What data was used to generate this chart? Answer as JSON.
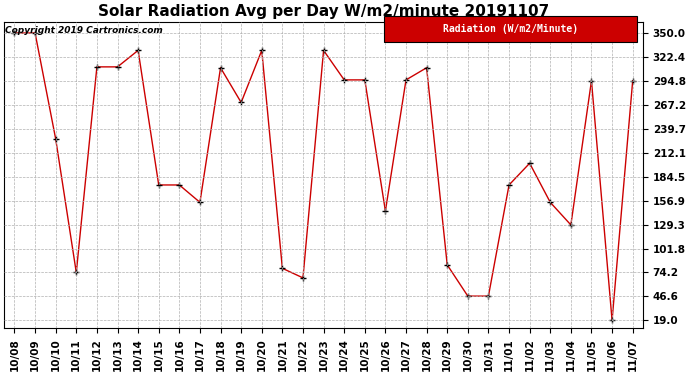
{
  "title": "Solar Radiation Avg per Day W/m2/minute 20191107",
  "copyright": "Copyright 2019 Cartronics.com",
  "legend_label": "Radiation (W/m2/Minute)",
  "dates": [
    "10/08",
    "10/09",
    "10/10",
    "10/11",
    "10/12",
    "10/13",
    "10/14",
    "10/15",
    "10/16",
    "10/17",
    "10/18",
    "10/19",
    "10/20",
    "10/21",
    "10/22",
    "10/23",
    "10/24",
    "10/25",
    "10/26",
    "10/27",
    "10/28",
    "10/29",
    "10/30",
    "10/31",
    "11/01",
    "11/02",
    "11/03",
    "11/04",
    "11/05",
    "11/06",
    "11/07"
  ],
  "values": [
    350.0,
    350.0,
    228.0,
    74.2,
    311.0,
    311.0,
    330.0,
    175.0,
    175.0,
    155.0,
    310.0,
    270.0,
    330.0,
    79.0,
    68.0,
    330.0,
    296.0,
    296.0,
    145.0,
    296.0,
    310.0,
    83.0,
    47.0,
    47.0,
    175.0,
    200.0,
    155.0,
    129.0,
    295.0,
    19.0,
    295.0
  ],
  "line_color": "#cc0000",
  "marker_color": "#000000",
  "bg_color": "#ffffff",
  "grid_color": "#b0b0b0",
  "legend_bg": "#cc0000",
  "legend_text_color": "#ffffff",
  "yticks": [
    19.0,
    46.6,
    74.2,
    101.8,
    129.3,
    156.9,
    184.5,
    212.1,
    239.7,
    267.2,
    294.8,
    322.4,
    350.0
  ],
  "ylim": [
    10,
    363
  ],
  "title_fontsize": 11,
  "tick_fontsize": 7.5,
  "copyright_fontsize": 6.5
}
